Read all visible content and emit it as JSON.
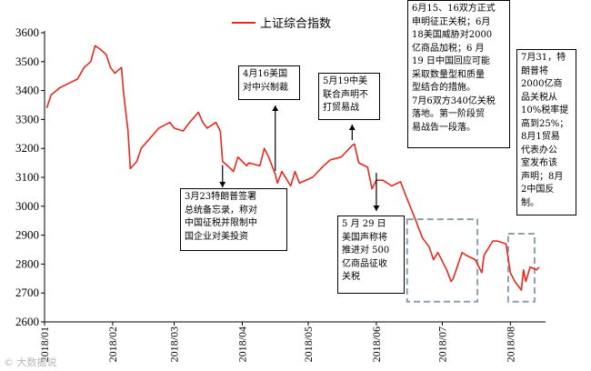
{
  "chart_data": {
    "type": "line",
    "title": "",
    "xlabel": "",
    "ylabel": "",
    "ylim": [
      2600,
      3600
    ],
    "yticks": [
      2600,
      2700,
      2800,
      2900,
      3000,
      3100,
      3200,
      3300,
      3400,
      3500,
      3600
    ],
    "x_ticks": [
      "2018/01",
      "2018/02",
      "2018/03",
      "2018/04",
      "2018/05",
      "2018/06",
      "2018/07",
      "2018/08"
    ],
    "legend": {
      "entry": "上证综合指数",
      "placement": "top-center"
    },
    "series": [
      {
        "name": "上证综合指数",
        "color": "#e8281e",
        "points": [
          [
            "2018-01-02",
            3340
          ],
          [
            "2018-01-04",
            3385
          ],
          [
            "2018-01-08",
            3410
          ],
          [
            "2018-01-12",
            3425
          ],
          [
            "2018-01-16",
            3440
          ],
          [
            "2018-01-19",
            3480
          ],
          [
            "2018-01-22",
            3500
          ],
          [
            "2018-01-24",
            3555
          ],
          [
            "2018-01-26",
            3545
          ],
          [
            "2018-01-29",
            3525
          ],
          [
            "2018-01-31",
            3480
          ],
          [
            "2018-02-02",
            3460
          ],
          [
            "2018-02-05",
            3480
          ],
          [
            "2018-02-06",
            3390
          ],
          [
            "2018-02-08",
            3260
          ],
          [
            "2018-02-09",
            3130
          ],
          [
            "2018-02-12",
            3155
          ],
          [
            "2018-02-14",
            3200
          ],
          [
            "2018-02-22",
            3270
          ],
          [
            "2018-02-27",
            3290
          ],
          [
            "2018-03-01",
            3270
          ],
          [
            "2018-03-05",
            3260
          ],
          [
            "2018-03-08",
            3290
          ],
          [
            "2018-03-12",
            3325
          ],
          [
            "2018-03-14",
            3290
          ],
          [
            "2018-03-16",
            3270
          ],
          [
            "2018-03-20",
            3290
          ],
          [
            "2018-03-22",
            3260
          ],
          [
            "2018-03-23",
            3155
          ],
          [
            "2018-03-26",
            3135
          ],
          [
            "2018-03-28",
            3120
          ],
          [
            "2018-03-30",
            3170
          ],
          [
            "2018-04-03",
            3140
          ],
          [
            "2018-04-04",
            3150
          ],
          [
            "2018-04-09",
            3140
          ],
          [
            "2018-04-11",
            3200
          ],
          [
            "2018-04-13",
            3170
          ],
          [
            "2018-04-16",
            3110
          ],
          [
            "2018-04-17",
            3080
          ],
          [
            "2018-04-19",
            3120
          ],
          [
            "2018-04-23",
            3070
          ],
          [
            "2018-04-25",
            3120
          ],
          [
            "2018-04-27",
            3080
          ],
          [
            "2018-05-03",
            3100
          ],
          [
            "2018-05-08",
            3140
          ],
          [
            "2018-05-11",
            3160
          ],
          [
            "2018-05-16",
            3170
          ],
          [
            "2018-05-21",
            3210
          ],
          [
            "2018-05-22",
            3215
          ],
          [
            "2018-05-24",
            3150
          ],
          [
            "2018-05-28",
            3135
          ],
          [
            "2018-05-30",
            3060
          ],
          [
            "2018-06-01",
            3090
          ],
          [
            "2018-06-04",
            3090
          ],
          [
            "2018-06-08",
            3070
          ],
          [
            "2018-06-12",
            3085
          ],
          [
            "2018-06-14",
            3045
          ],
          [
            "2018-06-19",
            2950
          ],
          [
            "2018-06-20",
            2930
          ],
          [
            "2018-06-22",
            2890
          ],
          [
            "2018-06-25",
            2860
          ],
          [
            "2018-06-27",
            2815
          ],
          [
            "2018-06-29",
            2840
          ],
          [
            "2018-07-03",
            2780
          ],
          [
            "2018-07-05",
            2740
          ],
          [
            "2018-07-06",
            2750
          ],
          [
            "2018-07-10",
            2840
          ],
          [
            "2018-07-12",
            2830
          ],
          [
            "2018-07-16",
            2815
          ],
          [
            "2018-07-19",
            2770
          ],
          [
            "2018-07-20",
            2830
          ],
          [
            "2018-07-24",
            2880
          ],
          [
            "2018-07-26",
            2880
          ],
          [
            "2018-07-30",
            2870
          ],
          [
            "2018-08-01",
            2770
          ],
          [
            "2018-08-03",
            2740
          ],
          [
            "2018-08-06",
            2710
          ],
          [
            "2018-08-07",
            2780
          ],
          [
            "2018-08-08",
            2740
          ],
          [
            "2018-08-10",
            2790
          ],
          [
            "2018-08-13",
            2780
          ],
          [
            "2018-08-14",
            2790
          ]
        ]
      }
    ],
    "annotations": [
      {
        "text": "3月23特朗普签署\n总统备忘录，称对\n中国征税并限制中\n国企业对美投资",
        "date": "2018-03-23",
        "direction": "down"
      },
      {
        "text": "4月16美国\n对中兴制裁",
        "date": "2018-04-16",
        "direction": "up"
      },
      {
        "text": "5月19中美\n联合声明不\n打贸易战",
        "date": "2018-05-21",
        "direction": "up"
      },
      {
        "text": "5  月  29  日\n美国声称将\n推进对  500\n亿商品征收\n关税",
        "date": "2018-06-01",
        "direction": "down"
      },
      {
        "text": "6月15、16双方正式\n申明征正关税；6月\n18美国威胁对2000\n亿商品加税；6 月\n19 日中国回应可能\n采取数量型和质量\n型结合的措施。\n7月6双方340亿关税\n落地。第一阶段贸\n易战告一段落。",
        "date": "2018-06-15"
      },
      {
        "text": "7月31，特\n朗普将\n2000亿商\n品关税从\n10%税率提\n高到25%；\n8月1贸易\n代表办公\n室发布该\n声明；8月\n2中国反制。",
        "date": "2018-07-31"
      }
    ],
    "highlight_ranges": [
      {
        "from": "2018-06-15",
        "to": "2018-07-17",
        "y_from": 2670,
        "y_to": 2955
      },
      {
        "from": "2018-07-31",
        "to": "2018-08-12",
        "y_from": 2670,
        "y_to": 2905
      }
    ]
  },
  "watermark": "©  大数据说"
}
